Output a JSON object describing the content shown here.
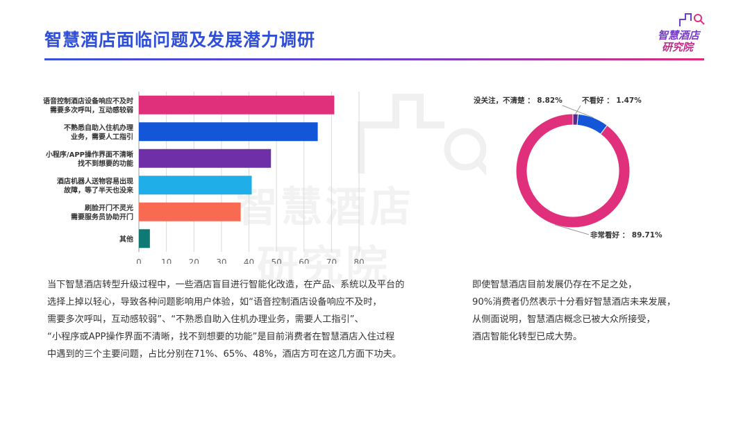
{
  "header": {
    "title": "智慧酒店面临问题及发展潜力调研",
    "logo_line1": "智慧酒店",
    "logo_line2": "研究院"
  },
  "watermark": {
    "line1": "智慧酒店",
    "line2": "研究院"
  },
  "colors": {
    "title": "#2f4fd8",
    "accent_pink": "#e02a7a",
    "donut_main": "#e0307c",
    "donut_second": "#1456d8",
    "donut_third": "#5a2a8a"
  },
  "chart_data": [
    {
      "type": "bar",
      "orientation": "horizontal",
      "categories": [
        [
          "语音控制酒店设备响应不及时",
          "需要多次呼叫，互动感较弱"
        ],
        [
          "不熟悉自助入住机办理",
          "业务，需要人工指引"
        ],
        [
          "小程序/APP操作界面不清晰",
          "找不到想要的功能"
        ],
        [
          "酒店机器人送物容易出现",
          "故障，等了半天也没来"
        ],
        [
          "刷脸开门不灵光",
          "需要服务员协助开门"
        ],
        [
          "其他"
        ]
      ],
      "values": [
        71,
        65,
        48,
        41,
        37,
        4
      ],
      "bar_colors": [
        "#e0307c",
        "#1456d8",
        "#6f2fa6",
        "#1faee8",
        "#f96a52",
        "#0f7a73"
      ],
      "xlim": [
        0,
        80
      ],
      "xticks": [
        0,
        10,
        20,
        30,
        40,
        50,
        60,
        70,
        80
      ],
      "grid": true
    },
    {
      "type": "pie",
      "style": "donut",
      "slices": [
        {
          "label": "非常看好",
          "value": 89.71,
          "display": "非常看好 ： 89.71%",
          "color": "#e0307c"
        },
        {
          "label": "没关注，不清楚",
          "value": 8.82,
          "display": "没关注，不清楚 ： 8.82%",
          "color": "#1456d8"
        },
        {
          "label": "不看好",
          "value": 1.47,
          "display": "不看好 ： 1.47%",
          "color": "#5a2a8a"
        }
      ]
    }
  ],
  "text": {
    "left_paragraph": "当下智慧酒店转型升级过程中，一些酒店盲目进行智能化改造，在产品、系统以及平台的\n选择上掉以轻心，导致各种问题影响用户体验，如“语音控制酒店设备响应不及时，\n需要多次呼叫，互动感较弱”、“不熟悉自助入住机办理业务，需要人工指引”、\n“小程序或APP操作界面不清晰，找不到想要的功能”是目前消费者在智慧酒店入住过程\n中遇到的三个主要问题，占比分别在71%、65%、48%，酒店方可在这几方面下功夫。",
    "right_paragraph": "即使智慧酒店目前发展仍存在不足之处，\n90%消费者仍然表示十分看好智慧酒店未来发展，\n从侧面说明，智慧酒店概念已被大众所接受，\n酒店智能化转型已成大势。"
  }
}
